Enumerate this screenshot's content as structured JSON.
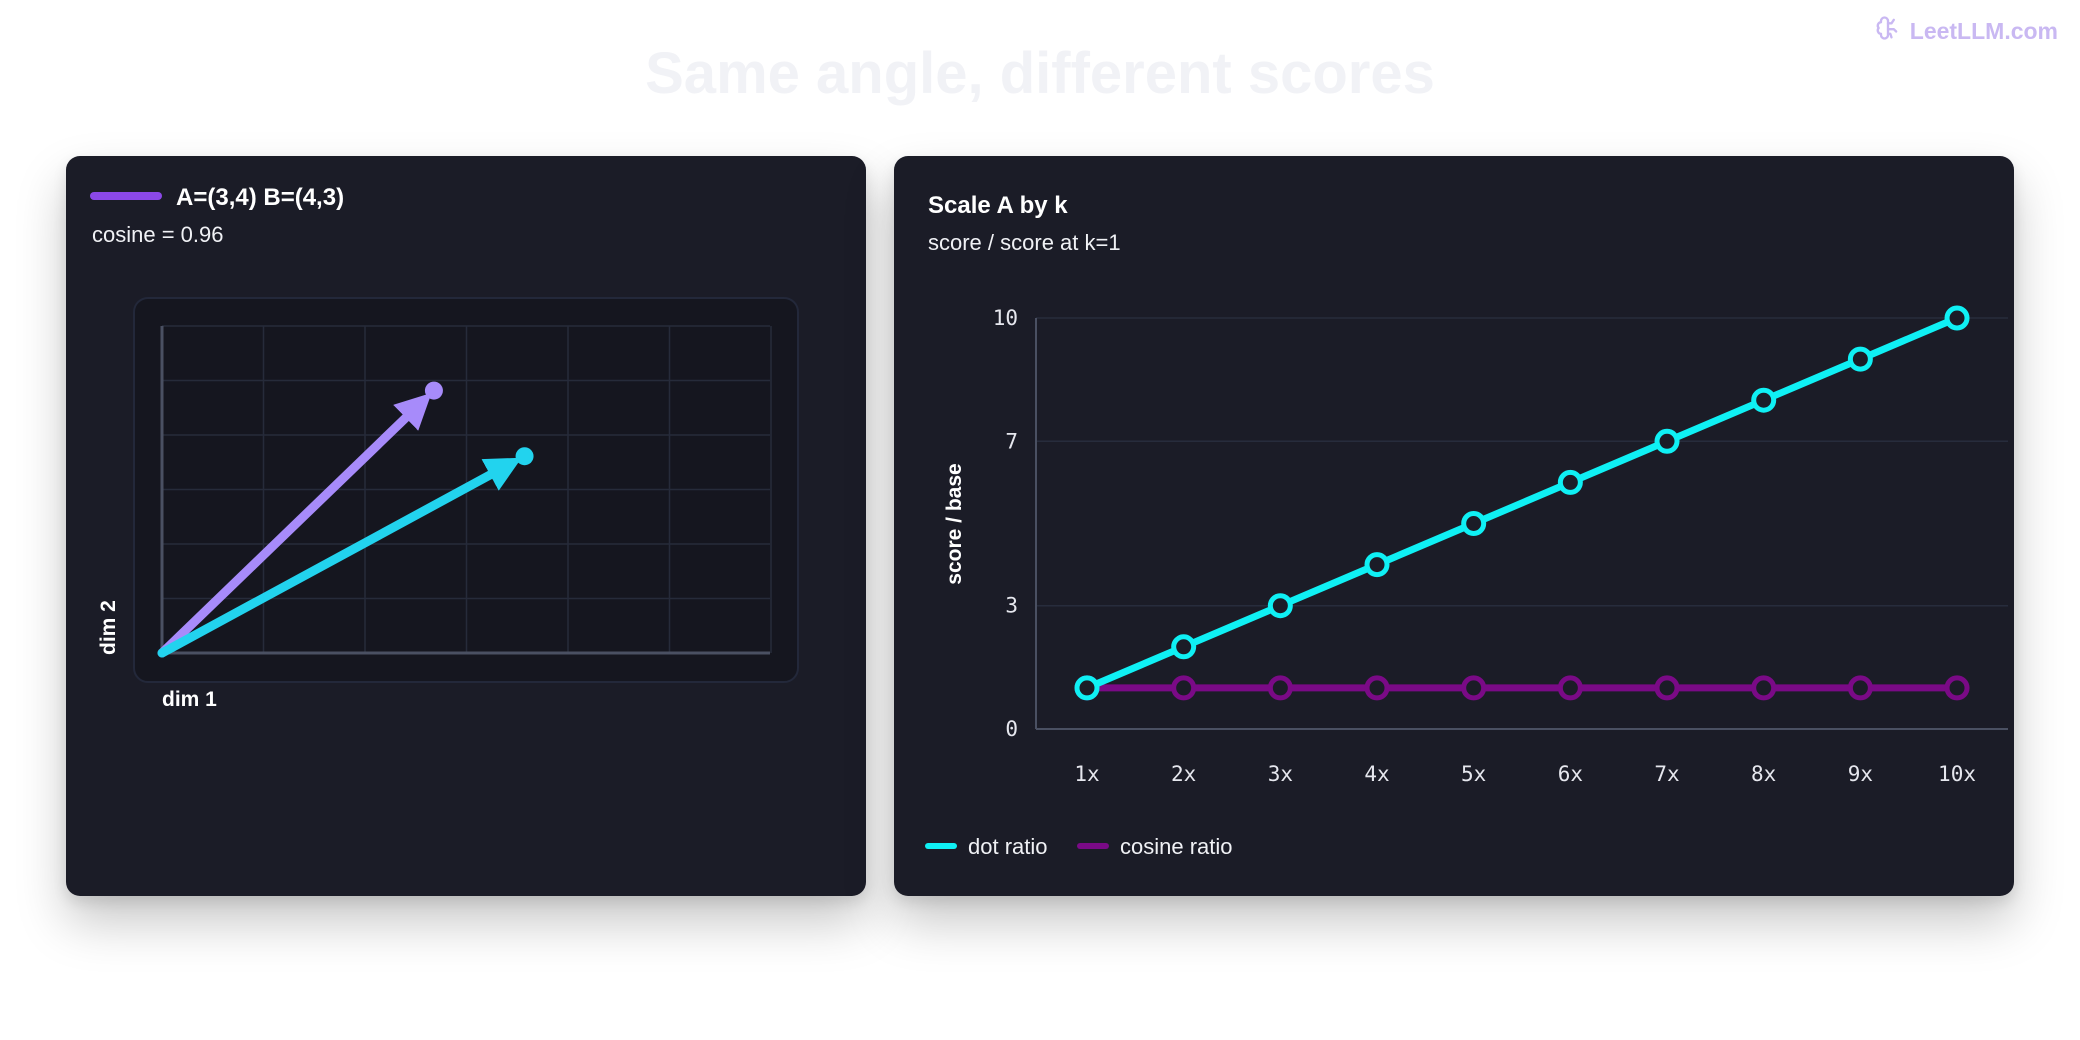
{
  "watermark": {
    "text": "LeetLLM.com",
    "icon": "brain-icon"
  },
  "title": "Same angle, different scores",
  "colors": {
    "vector_a": "#a78bfa",
    "vector_b": "#22d3ee",
    "legend_swatch": "#8b48e8",
    "dot_ratio": "#0ff0f4",
    "cosine_ratio": "#7a0a86"
  },
  "left_panel": {
    "legend_label": "A=(3,4) B=(4,3)",
    "subtitle": "cosine = 0.96",
    "xlabel": "dim 1",
    "ylabel": "dim 2",
    "vectors": [
      {
        "name": "A",
        "x": 3,
        "y": 4
      },
      {
        "name": "B",
        "x": 4,
        "y": 3
      }
    ]
  },
  "chart_data": {
    "type": "line",
    "title": "Scale A by k",
    "subtitle": "score / score at k=1",
    "ylabel": "score / base",
    "xlabel": "",
    "categories": [
      "1x",
      "2x",
      "3x",
      "4x",
      "5x",
      "6x",
      "7x",
      "8x",
      "9x",
      "10x"
    ],
    "yticks": [
      "0",
      "3",
      "7",
      "10"
    ],
    "ylim": [
      0,
      10
    ],
    "grid": true,
    "legend_position": "bottom-left",
    "series": [
      {
        "name": "dot ratio",
        "values": [
          1,
          2,
          3,
          4,
          5,
          6,
          7,
          8,
          9,
          10
        ]
      },
      {
        "name": "cosine ratio",
        "values": [
          1,
          1,
          1,
          1,
          1,
          1,
          1,
          1,
          1,
          1
        ]
      }
    ]
  }
}
